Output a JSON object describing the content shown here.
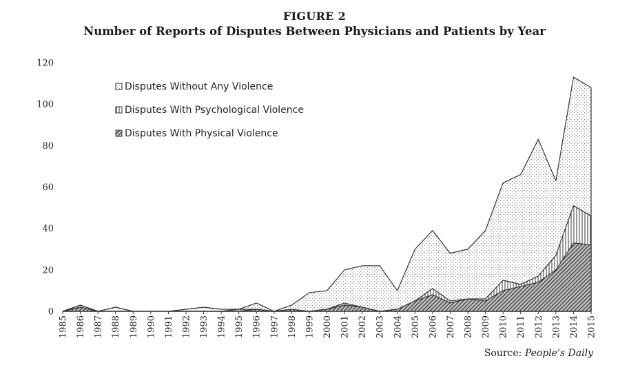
{
  "figure": {
    "label": "FIGURE 2",
    "title": "Number of Reports of Disputes Between Physicians and Patients by Year",
    "source_prefix": "Source:",
    "source_name": "People's Daily"
  },
  "chart_data": {
    "type": "area",
    "stacked_display": "cumulative",
    "categories": [
      "1985",
      "1986",
      "1987",
      "1988",
      "1989",
      "1990",
      "1991",
      "1992",
      "1993",
      "1994",
      "1995",
      "1996",
      "1997",
      "1998",
      "1999",
      "2000",
      "2001",
      "2002",
      "2003",
      "2004",
      "2005",
      "2006",
      "2007",
      "2008",
      "2009",
      "2010",
      "2011",
      "2012",
      "2013",
      "2014",
      "2015"
    ],
    "series": [
      {
        "name": "Disputes With Physical Violence",
        "pattern": "diagonal-hatch",
        "values": [
          0,
          2,
          0,
          0,
          0,
          0,
          0,
          0,
          0,
          0,
          0,
          1,
          0,
          1,
          0,
          1,
          3,
          2,
          0,
          1,
          5,
          8,
          4,
          6,
          5,
          10,
          12,
          14,
          20,
          33,
          32
        ]
      },
      {
        "name": "Disputes With Psychological Violence",
        "pattern": "vertical-lines",
        "values": [
          0,
          3,
          0,
          0,
          0,
          0,
          0,
          0,
          0,
          0,
          1,
          1,
          0,
          0,
          0,
          1,
          4,
          2,
          0,
          1,
          5,
          11,
          5,
          6,
          6,
          15,
          13,
          17,
          27,
          51,
          46
        ]
      },
      {
        "name": "Disputes Without Any Violence",
        "pattern": "dots",
        "values": [
          0,
          3,
          0,
          2,
          0,
          0,
          0,
          1,
          2,
          1,
          1,
          4,
          0,
          3,
          9,
          10,
          20,
          22,
          22,
          10,
          30,
          39,
          28,
          30,
          39,
          62,
          66,
          83,
          63,
          113,
          108
        ]
      }
    ],
    "legend": [
      "Disputes Without Any Violence",
      "Disputes With Psychological Violence",
      "Disputes With Physical Violence"
    ],
    "ylim": [
      0,
      120
    ],
    "yticks": [
      0,
      20,
      40,
      60,
      80,
      100,
      120
    ],
    "xlabel": "",
    "ylabel": "",
    "grid": false,
    "legend_position": "top-left"
  }
}
